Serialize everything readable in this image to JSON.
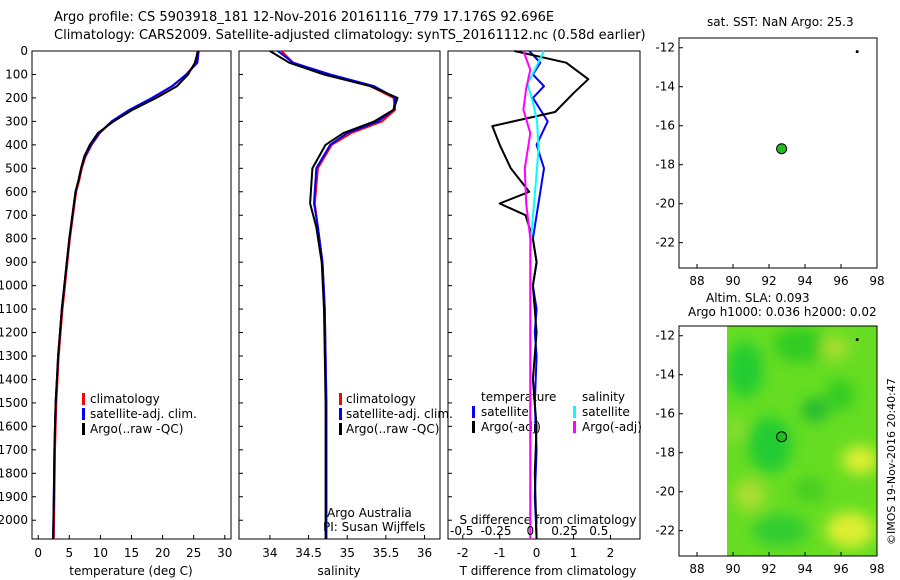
{
  "header": {
    "title1": "Argo profile: CS 5903918_181 12-Nov-2016 20161116_779 17.176S 92.696E",
    "title2": "Climatology: CARS2009. Satellite-adjusted climatology: synTS_20161112.nc (0.58d earlier)"
  },
  "colors": {
    "climatology": "#ff0000",
    "satellite": "#0000ff",
    "argo": "#000000",
    "sal_satellite": "#00ffff",
    "sal_argo": "#ff00ff",
    "argo_point": "#22bb22",
    "sla_field": "#66dd22"
  },
  "chart_data": [
    {
      "id": "temperature",
      "type": "line",
      "xlabel": "temperature (deg C)",
      "ylabel": "",
      "xlim": [
        -1,
        31
      ],
      "ylim": [
        2080,
        0
      ],
      "xticks": [
        0,
        5,
        10,
        15,
        20,
        25,
        30
      ],
      "yticks": [
        0,
        100,
        200,
        300,
        400,
        500,
        600,
        700,
        800,
        900,
        1000,
        1100,
        1200,
        1300,
        1400,
        1500,
        1600,
        1700,
        1800,
        1900,
        2000
      ],
      "legend": [
        "climatology",
        "satellite-adj. clim.",
        "Argo(..raw -QC)"
      ],
      "series": [
        {
          "name": "climatology",
          "color": "#ff0000",
          "x": [
            25.6,
            25.4,
            23.8,
            21.6,
            18.4,
            14.8,
            11.9,
            9.9,
            8.6,
            7.6,
            7.0,
            6.6,
            6.1,
            5.6,
            5.1,
            4.7,
            4.3,
            3.9,
            3.6,
            3.3,
            3.1,
            2.9,
            2.7,
            2.6,
            2.5
          ],
          "y": [
            0,
            50,
            100,
            150,
            200,
            250,
            300,
            350,
            400,
            450,
            500,
            550,
            600,
            700,
            800,
            900,
            1000,
            1100,
            1200,
            1300,
            1400,
            1500,
            1700,
            1900,
            2080
          ]
        },
        {
          "name": "satellite-adj. clim.",
          "color": "#0000ff",
          "x": [
            25.8,
            25.6,
            23.8,
            21.5,
            18.3,
            14.7,
            11.8,
            9.8,
            8.5,
            7.5,
            6.9,
            6.5,
            6.0,
            5.5,
            5.0,
            4.6,
            4.2,
            3.8,
            3.5,
            3.2,
            3.0,
            2.8,
            2.6,
            2.5,
            2.4
          ],
          "y": [
            0,
            50,
            100,
            150,
            200,
            250,
            300,
            350,
            400,
            450,
            500,
            550,
            600,
            700,
            800,
            900,
            1000,
            1100,
            1200,
            1300,
            1400,
            1500,
            1700,
            1900,
            2080
          ]
        },
        {
          "name": "Argo(..raw -QC)",
          "color": "#000000",
          "x": [
            25.7,
            25.2,
            24.1,
            22.3,
            19.0,
            15.2,
            12.1,
            9.6,
            8.3,
            7.4,
            6.9,
            6.5,
            6.0,
            5.5,
            5.0,
            4.6,
            4.2,
            3.8,
            3.5,
            3.2,
            3.0,
            2.8,
            2.6,
            2.5,
            2.4
          ],
          "y": [
            0,
            50,
            100,
            150,
            200,
            250,
            300,
            350,
            400,
            450,
            500,
            550,
            600,
            700,
            800,
            900,
            1000,
            1100,
            1200,
            1300,
            1400,
            1500,
            1700,
            1900,
            2080
          ]
        }
      ]
    },
    {
      "id": "salinity",
      "type": "line",
      "xlabel": "salinity",
      "ylabel": "",
      "xlim": [
        33.6,
        36.2
      ],
      "ylim": [
        2080,
        0
      ],
      "xticks": [
        34,
        34.5,
        35,
        35.5,
        36
      ],
      "legend": [
        "climatology",
        "satellite-adj. clim.",
        "Argo(..raw -QC)"
      ],
      "annotation": [
        "Argo Australia",
        "PI: Susan Wijffels"
      ],
      "series": [
        {
          "name": "climatology",
          "color": "#ff0000",
          "x": [
            34.15,
            34.3,
            34.75,
            35.3,
            35.6,
            35.62,
            35.45,
            35.05,
            34.8,
            34.62,
            34.58,
            34.62,
            34.68,
            34.71,
            34.72,
            34.73,
            34.73,
            34.73,
            34.73
          ],
          "y": [
            0,
            50,
            100,
            150,
            200,
            250,
            300,
            350,
            400,
            500,
            650,
            750,
            900,
            1100,
            1300,
            1500,
            1700,
            1900,
            2080
          ]
        },
        {
          "name": "satellite-adj. clim.",
          "color": "#0000ff",
          "x": [
            34.1,
            34.3,
            34.78,
            35.35,
            35.62,
            35.6,
            35.4,
            35.0,
            34.78,
            34.6,
            34.57,
            34.62,
            34.68,
            34.71,
            34.72,
            34.73,
            34.73,
            34.73,
            34.73
          ],
          "y": [
            0,
            50,
            100,
            150,
            200,
            250,
            300,
            350,
            400,
            500,
            650,
            750,
            900,
            1100,
            1300,
            1500,
            1700,
            1900,
            2080
          ]
        },
        {
          "name": "Argo(..raw -QC)",
          "color": "#000000",
          "x": [
            34.0,
            34.25,
            34.7,
            35.3,
            35.65,
            35.6,
            35.35,
            34.95,
            34.72,
            34.55,
            34.52,
            34.6,
            34.67,
            34.7,
            34.71,
            34.72,
            34.72,
            34.72,
            34.72
          ],
          "y": [
            0,
            50,
            100,
            150,
            200,
            250,
            300,
            350,
            400,
            500,
            650,
            750,
            900,
            1100,
            1300,
            1500,
            1700,
            1900,
            2080
          ]
        }
      ]
    },
    {
      "id": "difference",
      "type": "line",
      "xlabel": "T difference from climatology",
      "ylabel": "",
      "top_label": "S difference from climatology",
      "xlim": [
        -2.4,
        2.8
      ],
      "ylim": [
        2080,
        0
      ],
      "xticks": [
        -2,
        -1,
        0,
        1,
        2
      ],
      "xticklabels": [
        "-2",
        "-1",
        "0",
        "1",
        "2"
      ],
      "sticks": [
        -0.5,
        -0.25,
        0,
        0.25,
        0.5
      ],
      "sticklabels": [
        "-0.5",
        "-0.25",
        "0",
        "0.25",
        "0.5"
      ],
      "slim": [
        -0.6,
        0.8
      ],
      "legend_temperature": {
        "heading": "temperature",
        "items": [
          "satellite",
          "Argo(-adj)"
        ]
      },
      "legend_salinity": {
        "heading": "salinity",
        "items": [
          "satellite",
          "Argo(-adj)"
        ]
      },
      "series": [
        {
          "name": "temperature satellite",
          "color": "#0000ff",
          "x": [
            -0.2,
            0.1,
            -0.1,
            0.2,
            -0.1,
            0.3,
            0.0,
            0.2,
            0.1,
            0.0,
            -0.1,
            0.0,
            -0.1,
            0.0,
            -0.05,
            0.0,
            -0.05,
            0.0,
            -0.05,
            0.0
          ],
          "y": [
            0,
            50,
            100,
            150,
            200,
            300,
            400,
            500,
            600,
            700,
            800,
            900,
            1000,
            1100,
            1200,
            1300,
            1500,
            1700,
            1900,
            2080
          ]
        },
        {
          "name": "temperature Argo(-adj)",
          "color": "#000000",
          "x": [
            -0.6,
            0.8,
            1.4,
            1.0,
            0.5,
            -1.2,
            -1.0,
            -0.7,
            -0.2,
            -1.0,
            -0.3,
            -0.1,
            0.0,
            -0.1,
            0.0,
            -0.1,
            0.0,
            -0.05,
            0.0
          ],
          "y": [
            0,
            50,
            120,
            180,
            260,
            320,
            400,
            500,
            600,
            650,
            700,
            800,
            900,
            1000,
            1200,
            1400,
            1600,
            1800,
            2080
          ]
        },
        {
          "name": "salinity satellite",
          "color": "#00ffff",
          "x": [
            0.1,
            0.05,
            -0.02,
            0.02,
            0.05,
            0.06,
            0.04,
            0.02,
            0.0,
            0.0,
            0.0,
            0.0,
            0.0
          ],
          "y": [
            0,
            60,
            140,
            220,
            300,
            420,
            560,
            700,
            850,
            1000,
            1300,
            1700,
            2080
          ]
        },
        {
          "name": "salinity Argo(-adj)",
          "color": "#ff00ff",
          "x": [
            -0.05,
            0.0,
            -0.03,
            -0.05,
            0.0,
            -0.04,
            -0.03,
            0.0,
            0.0,
            0.0,
            0.0
          ],
          "y": [
            0,
            80,
            160,
            250,
            350,
            500,
            650,
            800,
            1000,
            1500,
            2080
          ]
        }
      ]
    },
    {
      "id": "sst_map",
      "type": "scatter",
      "title": "sat. SST: NaN Argo: 25.3",
      "xlim": [
        87,
        98
      ],
      "ylim": [
        -23.3,
        -11.5
      ],
      "xticks": [
        88,
        90,
        92,
        94,
        96,
        98
      ],
      "yticks": [
        -12,
        -14,
        -16,
        -18,
        -20,
        -22
      ],
      "points": [
        {
          "x": 92.7,
          "y": -17.18
        }
      ],
      "track": [
        {
          "x": 96.9,
          "y": -12.2
        }
      ]
    },
    {
      "id": "sla_map",
      "type": "heatmap",
      "title": "Altim. SLA: 0.093",
      "subtitle": "Argo h1000: 0.036 h2000: 0.02",
      "xlim": [
        87,
        98
      ],
      "ylim": [
        -23.3,
        -11.5
      ],
      "xticks": [
        88,
        90,
        92,
        94,
        96,
        98
      ],
      "yticks": [
        -12,
        -14,
        -16,
        -18,
        -20,
        -22
      ],
      "field_extent": {
        "x": [
          90,
          98
        ],
        "y": [
          -23.3,
          -11.5
        ]
      },
      "points": [
        {
          "x": 92.7,
          "y": -17.18
        }
      ],
      "track": [
        {
          "x": 96.9,
          "y": -12.2
        }
      ]
    }
  ],
  "footer": {
    "stamp": "©IMOS 19-Nov-2016 20:40:47"
  }
}
